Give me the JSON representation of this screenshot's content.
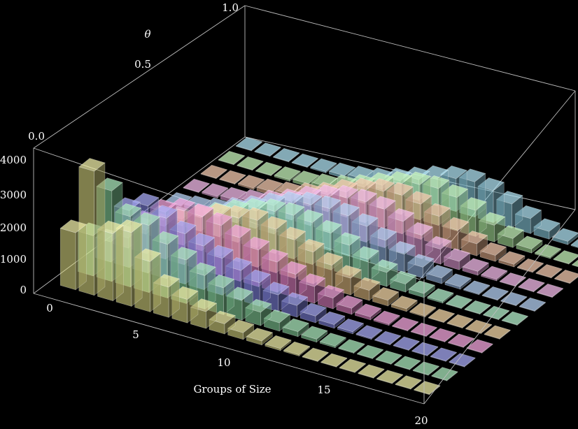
{
  "chart_data": {
    "type": "bar3d",
    "xlabel": "Groups of Size",
    "ylabel": "θ",
    "zlabel": "",
    "x_ticks": [
      "0",
      "5",
      "10",
      "15",
      "20"
    ],
    "y_ticks": [
      "0.0",
      "0.5",
      "1.0"
    ],
    "z_ticks": [
      "0",
      "1000",
      "2000",
      "3000",
      "4000"
    ],
    "xlim": [
      0,
      20
    ],
    "ylim": [
      0,
      1
    ],
    "zlim": [
      0,
      4000
    ],
    "grid": false,
    "legend": "none",
    "series": [
      {
        "theta": 0.0,
        "color": "#e8e58a",
        "values": [
          1700,
          3700,
          2000,
          2200,
          1500,
          900,
          700,
          500,
          300,
          200,
          120,
          60,
          40,
          20,
          10,
          5,
          3,
          2,
          1,
          0
        ]
      },
      {
        "theta": 0.1,
        "color": "#8fe0a6",
        "values": [
          1200,
          2700,
          2100,
          2000,
          1600,
          1300,
          1000,
          800,
          600,
          400,
          250,
          150,
          90,
          50,
          25,
          12,
          6,
          3,
          1,
          0
        ]
      },
      {
        "theta": 0.2,
        "color": "#8a8ef0",
        "values": [
          600,
          1700,
          2000,
          1800,
          1500,
          1300,
          1100,
          900,
          700,
          500,
          350,
          200,
          110,
          60,
          30,
          15,
          7,
          3,
          1,
          0
        ]
      },
      {
        "theta": 0.3,
        "color": "#f08ad2",
        "values": [
          300,
          900,
          1400,
          1600,
          1600,
          1500,
          1300,
          1100,
          900,
          700,
          500,
          320,
          180,
          90,
          45,
          20,
          8,
          3,
          1,
          0
        ]
      },
      {
        "theta": 0.4,
        "color": "#f0c98a",
        "values": [
          120,
          400,
          700,
          1000,
          1200,
          1300,
          1400,
          1300,
          1150,
          950,
          720,
          500,
          300,
          170,
          80,
          35,
          15,
          5,
          2,
          0
        ]
      },
      {
        "theta": 0.5,
        "color": "#9cecbc",
        "values": [
          60,
          200,
          400,
          650,
          900,
          1100,
          1250,
          1300,
          1250,
          1100,
          900,
          650,
          420,
          240,
          120,
          50,
          20,
          7,
          2,
          0
        ]
      },
      {
        "theta": 0.6,
        "color": "#9cc1f0",
        "values": [
          30,
          100,
          200,
          380,
          600,
          850,
          1050,
          1200,
          1250,
          1200,
          1050,
          800,
          550,
          330,
          170,
          75,
          30,
          10,
          3,
          0
        ]
      },
      {
        "theta": 0.7,
        "color": "#f0a6e4",
        "values": [
          15,
          50,
          100,
          200,
          350,
          550,
          800,
          1000,
          1150,
          1200,
          1150,
          950,
          700,
          450,
          250,
          120,
          50,
          15,
          4,
          0
        ]
      },
      {
        "theta": 0.8,
        "color": "#f0b894",
        "values": [
          5,
          20,
          50,
          100,
          180,
          320,
          500,
          750,
          950,
          1100,
          1150,
          1050,
          850,
          600,
          360,
          180,
          80,
          25,
          6,
          0
        ]
      },
      {
        "theta": 0.9,
        "color": "#b4f0a4",
        "values": [
          2,
          8,
          20,
          50,
          90,
          170,
          300,
          480,
          700,
          900,
          1050,
          1100,
          1000,
          780,
          500,
          270,
          120,
          40,
          10,
          0
        ]
      },
      {
        "theta": 1.0,
        "color": "#94d8ec",
        "values": [
          1,
          4,
          10,
          20,
          40,
          80,
          150,
          260,
          420,
          620,
          820,
          980,
          1050,
          950,
          720,
          450,
          230,
          100,
          30,
          0
        ]
      }
    ]
  }
}
